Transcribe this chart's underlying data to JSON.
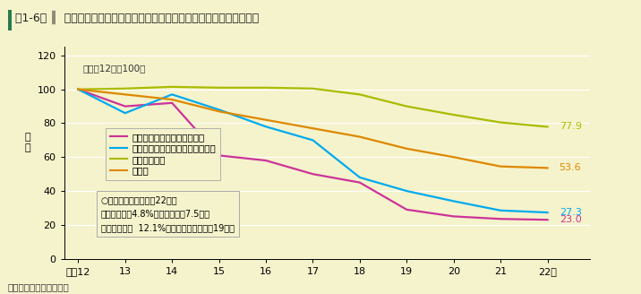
{
  "title_prefix": "第1-6図",
  "title_main": "飲酒運転・最高速度違反による交通事故件数及び死者数等の推移",
  "note": "注　警察庁資料による。",
  "annotation1": "（平成12年＝100）",
  "annotation2_line1": "○死亡事故率の違い（22年）",
  "annotation2_line2": "飲酒運転　　4.8%（飲酒なしの7.5倍）",
  "annotation2_line3": "最高速度違反  12.1%（法令違反別平均の19倍）",
  "ylabel": "指\n数",
  "years": [
    12,
    13,
    14,
    15,
    16,
    17,
    18,
    19,
    20,
    21,
    22
  ],
  "drunk_driving_accidents": [
    100.0,
    90.0,
    92.0,
    61.0,
    58.0,
    50.0,
    45.0,
    29.0,
    25.0,
    23.5,
    23.0
  ],
  "speed_violation_accidents": [
    100.0,
    86.0,
    97.0,
    88.0,
    78.0,
    70.0,
    48.0,
    40.0,
    34.0,
    28.5,
    27.3
  ],
  "total_accidents": [
    100.0,
    100.5,
    101.5,
    101.0,
    101.0,
    100.5,
    97.0,
    90.0,
    85.0,
    80.5,
    77.9
  ],
  "deaths": [
    100.0,
    97.0,
    94.0,
    87.0,
    82.0,
    77.0,
    72.0,
    65.0,
    60.0,
    54.5,
    53.6
  ],
  "drunk_color": "#cc3399",
  "speed_color": "#00aaee",
  "total_accidents_color": "#aabb00",
  "deaths_color": "#dd8800",
  "legend_labels": [
    "飲酒運転による交通事故件数",
    "最高速度違反による交通事故件数",
    "交通事故件数",
    "死者数"
  ],
  "ylim": [
    0,
    125
  ],
  "yticks": [
    0.0,
    20.0,
    40.0,
    60.0,
    80.0,
    100.0,
    120.0
  ],
  "background_color": "#f5f3cc",
  "title_bar_color": "#2a7a50"
}
